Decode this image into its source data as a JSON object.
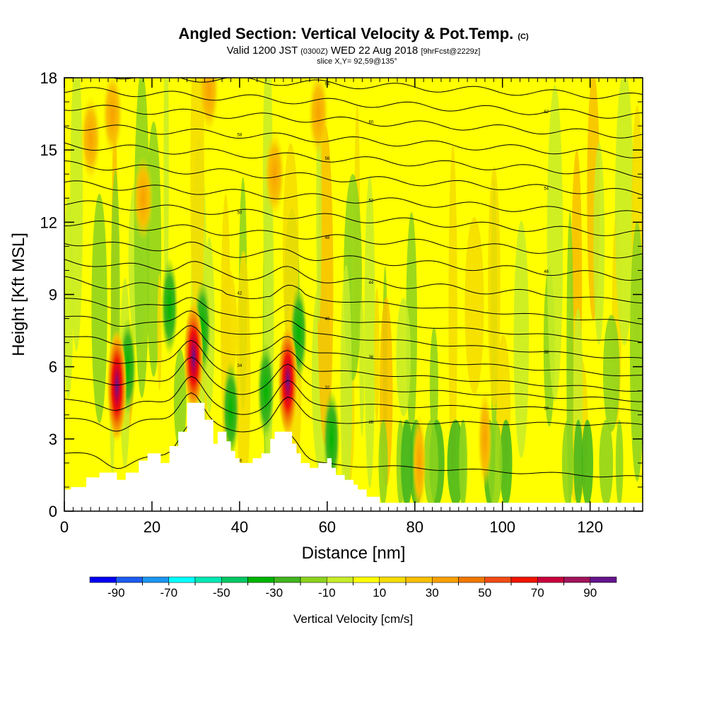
{
  "header": {
    "title_main": "Angled Section: Vertical Velocity & Pot.Temp.",
    "title_unit": "(C)",
    "valid_a": "Valid 1200 JST",
    "valid_b": "(0300Z)",
    "valid_c": "WED 22 Aug 2018",
    "valid_d": "[9hrFcst@2229z]",
    "slice": "slice X,Y= 92,59@135°"
  },
  "chart_data": {
    "type": "heatmap",
    "xlabel": "Distance [nm]",
    "ylabel": "Height [Kft MSL]",
    "xlim": [
      0,
      132
    ],
    "ylim": [
      0,
      18
    ],
    "x_ticks": [
      0,
      20,
      40,
      60,
      80,
      100,
      120
    ],
    "y_ticks": [
      0,
      3,
      6,
      9,
      12,
      15,
      18
    ],
    "x_tick_labels": [
      "0",
      "20",
      "40",
      "60",
      "80",
      "100",
      "120"
    ],
    "y_tick_labels": [
      "0",
      "3",
      "6",
      "9",
      "12",
      "15",
      "18"
    ],
    "colorbar": {
      "label": "Vertical Velocity [cm/s]",
      "min": -100,
      "max": 100,
      "step": 10,
      "tick_values": [
        -90,
        -70,
        -50,
        -30,
        -10,
        10,
        30,
        50,
        70,
        90
      ],
      "tick_labels": [
        "-90",
        "-70",
        "-50",
        "-30",
        "-10",
        "10",
        "30",
        "50",
        "70",
        "90"
      ],
      "colors": [
        "#0000f0",
        "#1c5cf0",
        "#1c96f0",
        "#00ffff",
        "#00e8b4",
        "#00c864",
        "#00b400",
        "#41b41e",
        "#8cd21e",
        "#c8ec28",
        "#ffff00",
        "#f5dc00",
        "#f8c000",
        "#f8a000",
        "#f07800",
        "#f04c14",
        "#f01400",
        "#c8003c",
        "#a0145a",
        "#64148c"
      ]
    },
    "theta_contours": {
      "units": "C",
      "levels_low_to_high": [
        26,
        28,
        30,
        32,
        34,
        36,
        38,
        40,
        42,
        44,
        46,
        48,
        50,
        52,
        54,
        56,
        58,
        60,
        62,
        64
      ],
      "left_heights_kft": [
        2.4,
        3.8,
        4.6,
        5.6,
        6.5,
        7.3,
        8.1,
        8.8,
        9.6,
        10.4,
        11.2,
        12.0,
        12.8,
        13.6,
        14.4,
        15.2,
        16.0,
        16.8,
        17.5,
        18.2
      ],
      "right_heights_kft": [
        1.4,
        3.6,
        4.2,
        4.6,
        5.0,
        5.6,
        6.3,
        7.0,
        7.8,
        8.7,
        9.7,
        10.6,
        11.5,
        12.3,
        13.2,
        14.0,
        14.8,
        15.6,
        16.4,
        17.2
      ]
    },
    "updraft_cores": [
      {
        "x": 12,
        "z": 5.2,
        "max_cm_s": 75
      },
      {
        "x": 29.5,
        "z": 6.4,
        "max_cm_s": 95
      },
      {
        "x": 51,
        "z": 5.4,
        "max_cm_s": 80
      },
      {
        "x": 81,
        "z": 2.0,
        "max_cm_s": 35
      },
      {
        "x": 96,
        "z": 3.0,
        "max_cm_s": 30
      }
    ],
    "terrain_kft": [
      [
        0,
        0.9
      ],
      [
        1.5,
        0.9
      ],
      [
        1.5,
        1.0
      ],
      [
        5,
        1.0
      ],
      [
        5,
        1.4
      ],
      [
        8,
        1.4
      ],
      [
        8,
        1.6
      ],
      [
        12,
        1.6
      ],
      [
        12,
        1.3
      ],
      [
        14,
        1.3
      ],
      [
        14,
        1.6
      ],
      [
        17,
        1.6
      ],
      [
        17,
        2.1
      ],
      [
        19,
        2.1
      ],
      [
        19,
        2.4
      ],
      [
        22,
        2.4
      ],
      [
        22,
        2.0
      ],
      [
        24,
        2.0
      ],
      [
        24,
        2.7
      ],
      [
        26,
        2.7
      ],
      [
        26,
        3.3
      ],
      [
        28,
        3.3
      ],
      [
        28,
        4.5
      ],
      [
        32,
        4.5
      ],
      [
        32,
        3.8
      ],
      [
        34,
        3.8
      ],
      [
        34,
        2.8
      ],
      [
        35,
        2.8
      ],
      [
        35,
        3.3
      ],
      [
        37,
        3.3
      ],
      [
        37,
        2.9
      ],
      [
        38,
        2.9
      ],
      [
        38,
        2.5
      ],
      [
        39,
        2.5
      ],
      [
        39,
        2.2
      ],
      [
        40,
        2.2
      ],
      [
        40,
        2.0
      ],
      [
        43,
        2.0
      ],
      [
        43,
        2.2
      ],
      [
        45,
        2.2
      ],
      [
        45,
        2.4
      ],
      [
        47,
        2.4
      ],
      [
        47,
        3.0
      ],
      [
        48,
        3.0
      ],
      [
        48,
        3.3
      ],
      [
        52,
        3.3
      ],
      [
        52,
        2.8
      ],
      [
        53,
        2.8
      ],
      [
        53,
        2.4
      ],
      [
        54,
        2.4
      ],
      [
        54,
        2.0
      ],
      [
        56,
        2.0
      ],
      [
        56,
        1.8
      ],
      [
        58,
        1.8
      ],
      [
        58,
        2.0
      ],
      [
        60,
        2.0
      ],
      [
        60,
        2.2
      ],
      [
        61,
        2.2
      ],
      [
        61,
        1.8
      ],
      [
        62,
        1.8
      ],
      [
        62,
        1.5
      ],
      [
        64,
        1.5
      ],
      [
        64,
        1.3
      ],
      [
        66,
        1.3
      ],
      [
        66,
        1.1
      ],
      [
        67,
        1.1
      ],
      [
        67,
        0.9
      ],
      [
        69,
        0.9
      ],
      [
        69,
        0.6
      ],
      [
        72,
        0.6
      ],
      [
        72,
        0.35
      ],
      [
        132,
        0.35
      ]
    ]
  }
}
